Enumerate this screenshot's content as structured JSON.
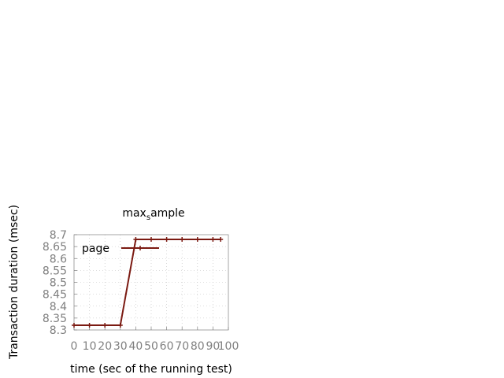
{
  "chart_data": {
    "type": "line",
    "title_main": "max",
    "title_sub": "s",
    "title_rest": "ample",
    "xlabel": "time (sec of the running test)",
    "ylabel": "Transaction duration (msec)",
    "xlim": [
      0,
      100
    ],
    "ylim": [
      8.3,
      8.7
    ],
    "x_ticks": [
      "0",
      "10",
      "20",
      "30",
      "40",
      "50",
      "60",
      "70",
      "80",
      "90",
      "100"
    ],
    "y_ticks": [
      "8.3",
      "8.35",
      "8.4",
      "8.45",
      "8.5",
      "8.55",
      "8.6",
      "8.65",
      "8.7"
    ],
    "grid": true,
    "legend_position": "top-left",
    "series": [
      {
        "name": "page",
        "color": "#7b1a12",
        "x": [
          0,
          10,
          20,
          30,
          40,
          50,
          60,
          70,
          80,
          90,
          95
        ],
        "y": [
          8.32,
          8.32,
          8.32,
          8.32,
          8.68,
          8.68,
          8.68,
          8.68,
          8.68,
          8.68,
          8.68
        ]
      }
    ]
  }
}
